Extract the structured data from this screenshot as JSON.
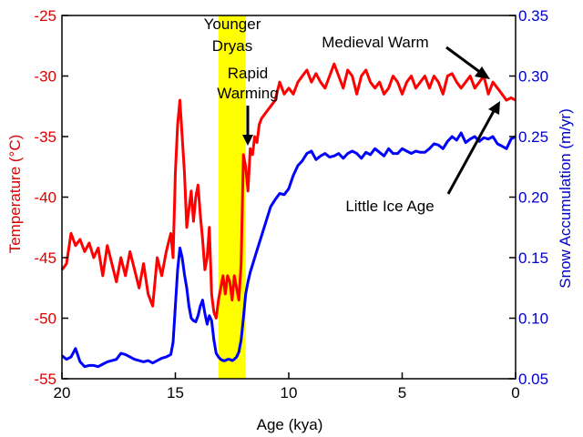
{
  "chart_data": {
    "type": "line",
    "x_axis": {
      "label": "Age (kya)",
      "range": [
        20,
        0
      ],
      "ticks": [
        20,
        15,
        10,
        5,
        0
      ],
      "tick_labels": [
        "20",
        "15",
        "10",
        "5",
        "0"
      ],
      "reversed": true
    },
    "y_left": {
      "label": "Temperature (°C)",
      "range": [
        -55,
        -25
      ],
      "ticks": [
        -55,
        -50,
        -45,
        -40,
        -35,
        -30,
        -25
      ],
      "tick_labels": [
        "-55",
        "-50",
        "-45",
        "-40",
        "-35",
        "-30",
        "-25"
      ],
      "color": "#dd0000"
    },
    "y_right": {
      "label": "Snow Accumulation (m/yr)",
      "range": [
        0.05,
        0.35
      ],
      "ticks": [
        0.05,
        0.1,
        0.15,
        0.2,
        0.25,
        0.3,
        0.35
      ],
      "tick_labels": [
        "0.05",
        "0.10",
        "0.15",
        "0.20",
        "0.25",
        "0.30",
        "0.35"
      ],
      "color": "#0000cc"
    },
    "series": [
      {
        "axis": "left",
        "color": "#ff0000",
        "x": [
          20.0,
          19.8,
          19.6,
          19.4,
          19.2,
          19.0,
          18.8,
          18.6,
          18.4,
          18.2,
          18.0,
          17.8,
          17.6,
          17.4,
          17.2,
          17.0,
          16.8,
          16.6,
          16.4,
          16.2,
          16.0,
          15.8,
          15.6,
          15.4,
          15.2,
          15.1,
          15.0,
          14.9,
          14.8,
          14.7,
          14.6,
          14.5,
          14.4,
          14.3,
          14.2,
          14.1,
          14.0,
          13.9,
          13.8,
          13.7,
          13.6,
          13.5,
          13.4,
          13.3,
          13.2,
          13.1,
          13.0,
          12.9,
          12.8,
          12.7,
          12.6,
          12.5,
          12.4,
          12.3,
          12.2,
          12.1,
          12.0,
          11.9,
          11.8,
          11.7,
          11.6,
          11.5,
          11.4,
          11.3,
          11.2,
          11.0,
          10.8,
          10.6,
          10.4,
          10.2,
          10.0,
          9.8,
          9.6,
          9.4,
          9.2,
          9.0,
          8.8,
          8.6,
          8.4,
          8.2,
          8.0,
          7.8,
          7.6,
          7.4,
          7.2,
          7.0,
          6.8,
          6.6,
          6.4,
          6.2,
          6.0,
          5.8,
          5.6,
          5.4,
          5.2,
          5.0,
          4.8,
          4.6,
          4.4,
          4.2,
          4.0,
          3.8,
          3.6,
          3.4,
          3.2,
          3.0,
          2.8,
          2.6,
          2.4,
          2.2,
          2.0,
          1.8,
          1.6,
          1.4,
          1.2,
          1.0,
          0.8,
          0.6,
          0.4,
          0.2,
          0.0
        ],
        "y": [
          -46.0,
          -45.5,
          -43.0,
          -44.0,
          -43.5,
          -44.5,
          -43.8,
          -45.0,
          -44.2,
          -46.5,
          -44.0,
          -45.5,
          -47.0,
          -45.0,
          -46.5,
          -44.5,
          -46.0,
          -47.5,
          -45.5,
          -48.0,
          -49.0,
          -45.0,
          -46.5,
          -44.5,
          -43.0,
          -45.0,
          -38.0,
          -34.0,
          -32.0,
          -35.0,
          -38.0,
          -42.5,
          -41.0,
          -39.5,
          -42.0,
          -40.0,
          -39.0,
          -41.5,
          -43.5,
          -46.0,
          -45.0,
          -42.5,
          -48.0,
          -49.5,
          -50.0,
          -48.5,
          -47.5,
          -46.5,
          -48.0,
          -46.5,
          -47.0,
          -48.5,
          -46.5,
          -47.5,
          -48.5,
          -45.5,
          -36.5,
          -37.5,
          -39.5,
          -36.0,
          -36.5,
          -35.0,
          -35.5,
          -34.0,
          -33.5,
          -33.0,
          -32.5,
          -32.0,
          -30.5,
          -31.5,
          -31.0,
          -31.5,
          -30.5,
          -30.0,
          -29.5,
          -30.5,
          -29.8,
          -30.5,
          -31.0,
          -30.0,
          -29.0,
          -30.0,
          -31.0,
          -29.5,
          -30.0,
          -31.5,
          -30.0,
          -29.5,
          -30.5,
          -31.0,
          -30.5,
          -31.5,
          -31.0,
          -30.0,
          -30.5,
          -31.5,
          -30.5,
          -30.0,
          -31.0,
          -30.5,
          -30.0,
          -31.0,
          -30.0,
          -30.5,
          -31.5,
          -30.0,
          -29.8,
          -30.5,
          -31.0,
          -30.5,
          -30.0,
          -31.0,
          -30.5,
          -30.0,
          -31.5,
          -30.5,
          -31.0,
          -31.5,
          -32.0,
          -31.8,
          -32.0
        ]
      },
      {
        "axis": "right",
        "color": "#0000ff",
        "x": [
          20.0,
          19.8,
          19.6,
          19.4,
          19.2,
          19.0,
          18.8,
          18.6,
          18.4,
          18.2,
          18.0,
          17.8,
          17.6,
          17.4,
          17.2,
          17.0,
          16.8,
          16.6,
          16.4,
          16.2,
          16.0,
          15.8,
          15.6,
          15.4,
          15.2,
          15.1,
          15.0,
          14.9,
          14.8,
          14.7,
          14.6,
          14.5,
          14.4,
          14.3,
          14.2,
          14.1,
          14.0,
          13.9,
          13.8,
          13.7,
          13.6,
          13.5,
          13.4,
          13.3,
          13.2,
          13.1,
          13.0,
          12.9,
          12.8,
          12.7,
          12.6,
          12.5,
          12.4,
          12.3,
          12.2,
          12.1,
          12.0,
          11.9,
          11.8,
          11.7,
          11.6,
          11.5,
          11.4,
          11.3,
          11.2,
          11.0,
          10.8,
          10.6,
          10.4,
          10.2,
          10.0,
          9.8,
          9.6,
          9.4,
          9.2,
          9.0,
          8.8,
          8.6,
          8.4,
          8.2,
          8.0,
          7.8,
          7.6,
          7.4,
          7.2,
          7.0,
          6.8,
          6.6,
          6.4,
          6.2,
          6.0,
          5.8,
          5.6,
          5.4,
          5.2,
          5.0,
          4.8,
          4.6,
          4.4,
          4.2,
          4.0,
          3.8,
          3.6,
          3.4,
          3.2,
          3.0,
          2.8,
          2.6,
          2.4,
          2.2,
          2.0,
          1.8,
          1.6,
          1.4,
          1.2,
          1.0,
          0.8,
          0.6,
          0.4,
          0.2,
          0.0
        ],
        "y": [
          0.069,
          0.066,
          0.068,
          0.075,
          0.064,
          0.06,
          0.061,
          0.061,
          0.06,
          0.062,
          0.064,
          0.065,
          0.066,
          0.071,
          0.07,
          0.068,
          0.066,
          0.065,
          0.064,
          0.065,
          0.063,
          0.065,
          0.067,
          0.068,
          0.07,
          0.08,
          0.11,
          0.14,
          0.158,
          0.15,
          0.136,
          0.125,
          0.11,
          0.1,
          0.098,
          0.097,
          0.102,
          0.11,
          0.115,
          0.104,
          0.095,
          0.102,
          0.098,
          0.082,
          0.071,
          0.068,
          0.066,
          0.065,
          0.065,
          0.066,
          0.066,
          0.065,
          0.066,
          0.068,
          0.072,
          0.082,
          0.1,
          0.12,
          0.13,
          0.138,
          0.144,
          0.15,
          0.156,
          0.162,
          0.168,
          0.18,
          0.192,
          0.198,
          0.203,
          0.202,
          0.207,
          0.218,
          0.226,
          0.23,
          0.236,
          0.238,
          0.231,
          0.234,
          0.236,
          0.233,
          0.234,
          0.236,
          0.232,
          0.236,
          0.238,
          0.236,
          0.232,
          0.237,
          0.235,
          0.24,
          0.237,
          0.234,
          0.24,
          0.236,
          0.236,
          0.24,
          0.238,
          0.236,
          0.238,
          0.237,
          0.237,
          0.24,
          0.244,
          0.243,
          0.24,
          0.246,
          0.25,
          0.247,
          0.253,
          0.245,
          0.248,
          0.25,
          0.246,
          0.249,
          0.248,
          0.25,
          0.244,
          0.242,
          0.24,
          0.248,
          0.25
        ]
      }
    ],
    "highlight_band": {
      "x_from": 13.1,
      "x_to": 11.9,
      "color": "#ffff00"
    },
    "annotations": {
      "younger_dryas_line1": "Younger",
      "younger_dryas_line2": "Dryas",
      "rapid_line1": "Rapid",
      "rapid_line2": "Warming",
      "medieval": "Medieval Warm",
      "little_ice_age": "Little Ice Age"
    },
    "grid": false
  }
}
